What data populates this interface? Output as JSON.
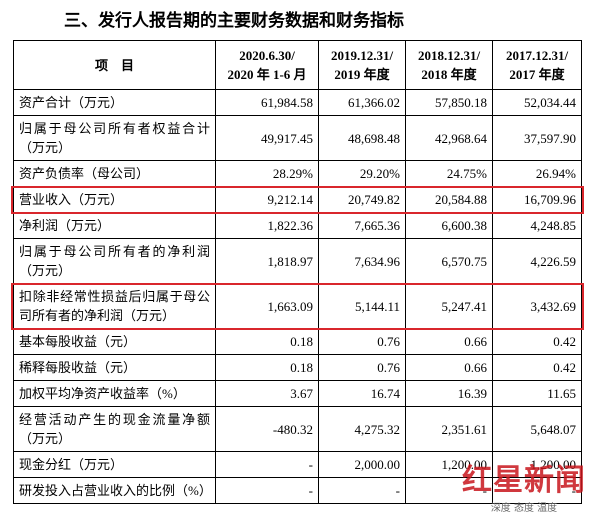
{
  "title": "三、发行人报告期的主要财务数据和财务指标",
  "table": {
    "header": [
      "项　目",
      [
        "2020.6.30/",
        "2020 年 1-6 月"
      ],
      [
        "2019.12.31/",
        "2019 年度"
      ],
      [
        "2018.12.31/",
        "2018 年度"
      ],
      [
        "2017.12.31/",
        "2017 年度"
      ]
    ],
    "rows": [
      {
        "label": "资产合计（万元）",
        "values": [
          "61,984.58",
          "61,366.02",
          "57,850.18",
          "52,034.44"
        ]
      },
      {
        "label": "归属于母公司所有者权益合计（万元）",
        "values": [
          "49,917.45",
          "48,698.48",
          "42,968.64",
          "37,597.90"
        ]
      },
      {
        "label": "资产负债率（母公司）",
        "values": [
          "28.29%",
          "29.20%",
          "24.75%",
          "26.94%"
        ]
      },
      {
        "label": "营业收入（万元）",
        "values": [
          "9,212.14",
          "20,749.82",
          "20,584.88",
          "16,709.96"
        ],
        "highlight": true
      },
      {
        "label": "净利润（万元）",
        "values": [
          "1,822.36",
          "7,665.36",
          "6,600.38",
          "4,248.85"
        ]
      },
      {
        "label": "归属于母公司所有者的净利润（万元）",
        "values": [
          "1,818.97",
          "7,634.96",
          "6,570.75",
          "4,226.59"
        ]
      },
      {
        "label": "扣除非经常性损益后归属于母公司所有者的净利润（万元）",
        "values": [
          "1,663.09",
          "5,144.11",
          "5,247.41",
          "3,432.69"
        ],
        "highlight": true
      },
      {
        "label": "基本每股收益（元）",
        "values": [
          "0.18",
          "0.76",
          "0.66",
          "0.42"
        ]
      },
      {
        "label": "稀释每股收益（元）",
        "values": [
          "0.18",
          "0.76",
          "0.66",
          "0.42"
        ]
      },
      {
        "label": "加权平均净资产收益率（%）",
        "values": [
          "3.67",
          "16.74",
          "16.39",
          "11.65"
        ]
      },
      {
        "label": "经营活动产生的现金流量净额（万元）",
        "values": [
          "-480.32",
          "4,275.32",
          "2,351.61",
          "5,648.07"
        ]
      },
      {
        "label": "现金分红（万元）",
        "values": [
          "-",
          "2,000.00",
          "1,200.00",
          "1,200.00"
        ]
      },
      {
        "label": "研发投入占营业收入的比例（%）",
        "values": [
          "-",
          "-",
          "-",
          "-"
        ]
      }
    ]
  },
  "watermark": {
    "logo": "红星新闻",
    "slogan": "深度 态度 温度"
  }
}
